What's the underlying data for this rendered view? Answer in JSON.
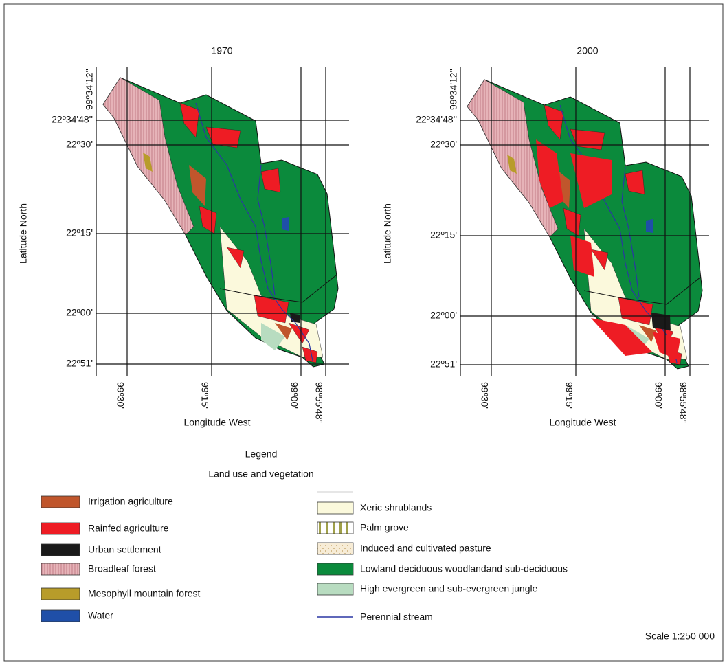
{
  "panels": [
    {
      "title": "1970",
      "top_longitude": "99º34'12''",
      "latitudes": [
        "22º34'48''",
        "22º30'",
        "22º15'",
        "22º00'",
        "22º51'"
      ],
      "longitudes": [
        "99º30'",
        "99º15'",
        "99º00'",
        "98º55'48''"
      ],
      "x_label": "Longitude West",
      "y_label": "Latitude North"
    },
    {
      "title": "2000",
      "top_longitude": "99º34'12''",
      "latitudes": [
        "22º34'48''",
        "22º30'",
        "22º15'",
        "22º00'",
        "22º51'"
      ],
      "longitudes": [
        "99º30'",
        "99º15'",
        "99º00'",
        "98º55'48''"
      ],
      "x_label": "Longitude West",
      "y_label": "Latitude North"
    }
  ],
  "legend": {
    "title": "Legend",
    "subtitle": "Land use and vegetation",
    "left_items": [
      "Irrigation agriculture",
      "Rainfed agriculture",
      "Urban settlement",
      "Broadleaf forest",
      "Mesophyll mountain forest",
      "Water"
    ],
    "right_items": [
      "Xeric shrublands",
      "Palm grove",
      "Induced and cultivated pasture",
      "Lowland deciduous woodlandand sub-deciduous",
      "High evergreen and sub-evergreen jungle"
    ],
    "stream": "Perennial stream",
    "scale": "Scale 1:250 000"
  }
}
